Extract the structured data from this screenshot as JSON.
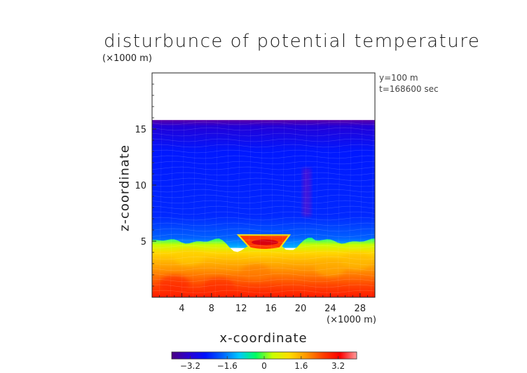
{
  "chart_data": {
    "type": "heatmap",
    "title": "disturbunce of potential temperature",
    "xlabel": "x-coordinate",
    "ylabel": "z-coordinate",
    "x_unit": "(×1000 m)",
    "y_unit": "(×1000 m)",
    "annotations": [
      "y=100 m",
      "t=168600 sec"
    ],
    "xlim": [
      0,
      30
    ],
    "ylim": [
      0,
      20
    ],
    "x_ticks": [
      4,
      8,
      12,
      16,
      20,
      24,
      28
    ],
    "x_tick_labels": [
      "4",
      "8",
      "12",
      "16",
      "20",
      "24",
      "28"
    ],
    "y_ticks": [
      5,
      10,
      15
    ],
    "y_tick_labels": [
      "5",
      "10",
      "15"
    ],
    "colorbar": {
      "range": [
        -4,
        4
      ],
      "ticks": [
        -3.2,
        -1.6,
        0,
        1.6,
        3.2
      ],
      "tick_labels": [
        "−3.2",
        "−1.6",
        "0",
        "1.6",
        "3.2"
      ]
    },
    "field_regions": [
      {
        "name": "top-boundary-z",
        "value": 15.8
      },
      {
        "name": "upper-layer",
        "value": -3.2
      },
      {
        "name": "inversion-z",
        "value": 5.0
      },
      {
        "name": "lower-layer-surface",
        "value": 3.4
      },
      {
        "name": "warm-bubble-center-x",
        "value": 15
      },
      {
        "name": "warm-bubble-value",
        "value": 3.6
      }
    ],
    "grid": false
  },
  "colors": {
    "colormap": [
      "#4b0082",
      "#2a00d0",
      "#0010ff",
      "#0060ff",
      "#00c8ff",
      "#00ff60",
      "#c8ff00",
      "#ffdc00",
      "#ff9600",
      "#ff4000",
      "#ff0000",
      "#ff9a9a"
    ]
  }
}
